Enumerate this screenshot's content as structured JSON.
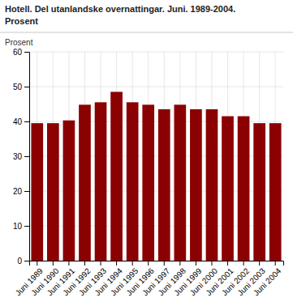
{
  "chart_data": {
    "type": "bar",
    "title": "Hotell. Del utanlandske overnattingar. Juni. 1989-2004.",
    "subtitle": "Prosent",
    "ylabel": "Prosent",
    "categories": [
      "Juni 1989",
      "Juni 1990",
      "Juni 1991",
      "Juni 1992",
      "Juni 1993",
      "Juni 1994",
      "Juni 1995",
      "Juni 1996",
      "Juni 1997",
      "Juni 1998",
      "Juni 1999",
      "Juni 2000",
      "Juni 2001",
      "Juni 2002",
      "Juni 2003",
      "Juni 2004"
    ],
    "values": [
      39.5,
      39.5,
      40.3,
      44.8,
      45.5,
      48.5,
      45.5,
      44.8,
      43.5,
      44.8,
      43.5,
      43.5,
      41.5,
      41.5,
      39.5,
      39.5
    ],
    "color": "#8B0000",
    "ylim": [
      0,
      60
    ],
    "yticks": [
      0,
      10,
      20,
      30,
      40,
      50,
      60
    ],
    "grid": true
  }
}
